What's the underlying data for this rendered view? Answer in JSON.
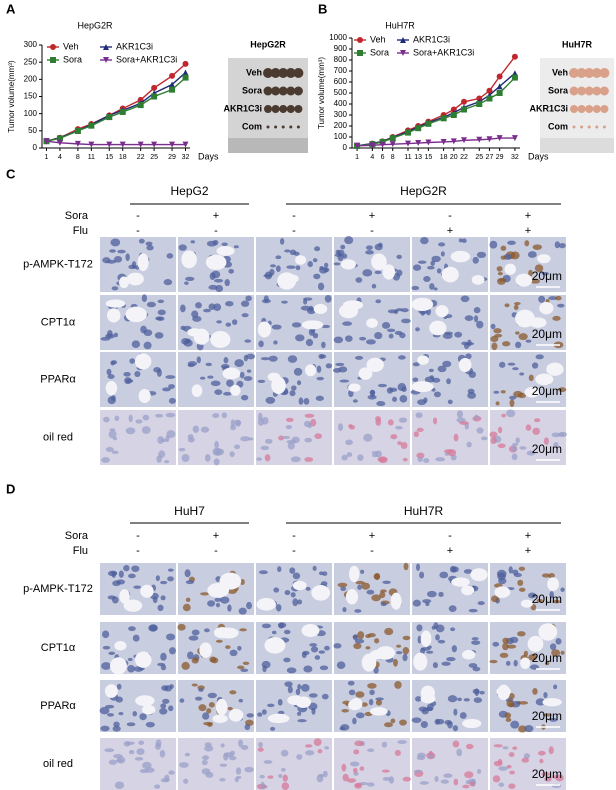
{
  "chart_data": [
    {
      "type": "line",
      "panel_label": "A",
      "title": "HepG2R",
      "y_label": "Tumor volume(mm³)",
      "x_label": "Days",
      "x": [
        1,
        4,
        8,
        11,
        15,
        18,
        22,
        25,
        29,
        32
      ],
      "xlim": [
        0,
        33
      ],
      "xticks": [
        1,
        4,
        8,
        11,
        15,
        18,
        22,
        25,
        29,
        32
      ],
      "ylim": [
        0,
        300
      ],
      "yticks": [
        0,
        50,
        100,
        150,
        200,
        250,
        300
      ],
      "series": [
        {
          "name": "Veh",
          "color": "#c0272d",
          "marker": "circle",
          "values": [
            20,
            30,
            55,
            70,
            95,
            115,
            140,
            175,
            210,
            245
          ]
        },
        {
          "name": "AKR1C3i",
          "color": "#1f2a7a",
          "marker": "triangle",
          "values": [
            20,
            30,
            50,
            68,
            95,
            110,
            130,
            160,
            185,
            220
          ]
        },
        {
          "name": "Sora",
          "color": "#2e7d32",
          "marker": "square",
          "values": [
            20,
            28,
            50,
            65,
            90,
            105,
            125,
            150,
            170,
            205
          ]
        },
        {
          "name": "Sora+AKR1C3i",
          "color": "#7b2d8e",
          "marker": "down",
          "values": [
            20,
            15,
            12,
            10,
            10,
            10,
            10,
            10,
            10,
            10
          ]
        }
      ]
    },
    {
      "type": "line",
      "panel_label": "B",
      "title": "HuH7R",
      "y_label": "Tumor volume(mm³)",
      "x_label": "Days",
      "x": [
        1,
        4,
        6,
        8,
        11,
        13,
        15,
        18,
        20,
        22,
        25,
        27,
        29,
        32
      ],
      "xlim": [
        0,
        33
      ],
      "xticks": [
        1,
        4,
        6,
        8,
        11,
        13,
        15,
        18,
        20,
        22,
        25,
        27,
        29,
        32
      ],
      "ylim": [
        0,
        1000
      ],
      "yticks": [
        0,
        100,
        200,
        300,
        400,
        500,
        600,
        700,
        800,
        900,
        1000
      ],
      "series": [
        {
          "name": "Veh",
          "color": "#c0272d",
          "marker": "circle",
          "values": [
            20,
            40,
            60,
            100,
            160,
            200,
            240,
            300,
            350,
            420,
            450,
            520,
            650,
            830
          ]
        },
        {
          "name": "AKR1C3i",
          "color": "#1f2a7a",
          "marker": "triangle",
          "values": [
            20,
            40,
            60,
            95,
            150,
            190,
            230,
            280,
            320,
            370,
            420,
            480,
            560,
            680
          ]
        },
        {
          "name": "Sora",
          "color": "#2e7d32",
          "marker": "square",
          "values": [
            20,
            35,
            55,
            90,
            140,
            180,
            220,
            270,
            300,
            350,
            400,
            450,
            500,
            640
          ]
        },
        {
          "name": "Sora+AKR1C3i",
          "color": "#7b2d8e",
          "marker": "down",
          "values": [
            20,
            25,
            30,
            35,
            40,
            45,
            50,
            55,
            60,
            70,
            75,
            80,
            90,
            90
          ]
        }
      ]
    }
  ],
  "tumor_photos": [
    {
      "title": "HepG2R",
      "rows": [
        "Veh",
        "Sora",
        "AKR1C3i",
        "Com"
      ]
    },
    {
      "title": "HuH7R",
      "rows": [
        "Veh",
        "Sora",
        "AKR1C3i",
        "Com"
      ]
    }
  ],
  "ihc_panels": [
    {
      "panel_label": "C",
      "groups": [
        "HepG2",
        "HepG2R"
      ],
      "conditions": [
        {
          "name": "Sora",
          "signs": [
            "-",
            "+",
            "-",
            "+",
            "-",
            "+"
          ]
        },
        {
          "name": "Flu",
          "signs": [
            "-",
            "-",
            "-",
            "-",
            "+",
            "+"
          ]
        }
      ],
      "rows": [
        "p-AMPK-T172",
        "CPT1α",
        "PPARα",
        "oil red"
      ],
      "scale_bar": "20μm"
    },
    {
      "panel_label": "D",
      "groups": [
        "HuH7",
        "HuH7R"
      ],
      "conditions": [
        {
          "name": "Sora",
          "signs": [
            "-",
            "+",
            "-",
            "+",
            "-",
            "+"
          ]
        },
        {
          "name": "Flu",
          "signs": [
            "-",
            "-",
            "-",
            "-",
            "+",
            "+"
          ]
        }
      ],
      "rows": [
        "p-AMPK-T172",
        "CPT1α",
        "PPARα",
        "oil red"
      ],
      "scale_bar": "20μm"
    }
  ]
}
